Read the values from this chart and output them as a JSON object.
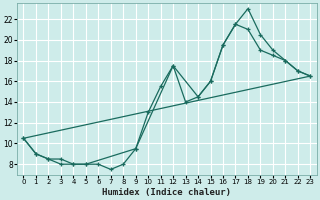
{
  "xlabel": "Humidex (Indice chaleur)",
  "bg_color": "#ceecea",
  "grid_color": "#b0d8d5",
  "line_color": "#1a6b5e",
  "xlim": [
    -0.5,
    23.5
  ],
  "ylim": [
    7.0,
    23.5
  ],
  "yticks": [
    8,
    10,
    12,
    14,
    16,
    18,
    20,
    22
  ],
  "xticks": [
    0,
    1,
    2,
    3,
    4,
    5,
    6,
    7,
    8,
    9,
    10,
    11,
    12,
    13,
    14,
    15,
    16,
    17,
    18,
    19,
    20,
    21,
    22,
    23
  ],
  "series1_x": [
    0,
    1,
    2,
    3,
    4,
    5,
    6,
    7,
    8,
    9,
    10,
    11,
    12,
    13,
    14,
    15,
    16,
    17,
    18,
    19,
    20,
    21,
    22,
    23
  ],
  "series1_y": [
    10.5,
    9.0,
    8.5,
    8.0,
    8.0,
    8.0,
    8.0,
    7.5,
    8.0,
    9.5,
    13.0,
    15.5,
    17.5,
    14.0,
    14.5,
    16.0,
    19.5,
    21.5,
    21.0,
    19.0,
    18.5,
    18.0,
    17.0,
    16.5
  ],
  "series2_x": [
    0,
    1,
    2,
    3,
    4,
    5,
    9,
    12,
    14,
    15,
    16,
    17,
    18,
    19,
    20,
    21,
    22,
    23
  ],
  "series2_y": [
    10.5,
    9.0,
    8.5,
    8.5,
    8.0,
    8.0,
    9.5,
    17.5,
    14.5,
    16.0,
    19.5,
    21.5,
    23.0,
    20.5,
    19.0,
    18.0,
    17.0,
    16.5
  ],
  "series3_x": [
    0,
    23
  ],
  "series3_y": [
    10.5,
    16.5
  ]
}
